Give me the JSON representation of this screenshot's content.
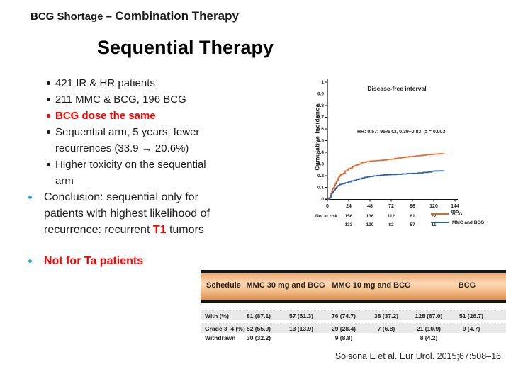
{
  "header": {
    "prefix": "BCG Shortage – ",
    "title": "Combination Therapy"
  },
  "slide_title": "Sequential Therapy",
  "bullets": {
    "b1": "421 IR & HR patients",
    "b2": "211 MMC & BCG, 196 BCG",
    "b3": "BCG dose the same",
    "b4a": "Sequential arm, 5 years, fewer",
    "b4b": "recurrences (33.9 → 20.6%)",
    "b5a": "Higher toxicity on the sequential",
    "b5b": "arm",
    "c1": "Conclusion: sequential only for",
    "c2": "patients with highest likelihood of",
    "c3_pre": "recurrence: recurrent ",
    "c3_hl": "T1",
    "c3_post": " tumors",
    "nota": "Not for Ta patients"
  },
  "chart_data": {
    "type": "line",
    "title": "Disease-free interval",
    "ylabel": "Cumulative Incidence",
    "xlabel": "mo",
    "xlim": [
      0,
      144
    ],
    "ylim": [
      0,
      1
    ],
    "xticks": [
      0,
      24,
      48,
      72,
      96,
      120,
      144
    ],
    "yticks": [
      0,
      0.1,
      0.2,
      0.3,
      0.4,
      0.5,
      0.6,
      0.7,
      0.8,
      0.9,
      1
    ],
    "grid": false,
    "legend_position": "bottom-right",
    "annotation_pre": "HR: 0.57; 95% CI, 0.39–0.83; ",
    "annotation_p": "p",
    "annotation_post": " = 0.003",
    "series": [
      {
        "name": "BCG",
        "color": "#e5662b",
        "points": [
          [
            0,
            0
          ],
          [
            1,
            0.01
          ],
          [
            3,
            0.03
          ],
          [
            4,
            0.05
          ],
          [
            5,
            0.07
          ],
          [
            6,
            0.09
          ],
          [
            7,
            0.1
          ],
          [
            8,
            0.12
          ],
          [
            9,
            0.13
          ],
          [
            10,
            0.15
          ],
          [
            11,
            0.16
          ],
          [
            12,
            0.18
          ],
          [
            13,
            0.19
          ],
          [
            14,
            0.2
          ],
          [
            15,
            0.21
          ],
          [
            17,
            0.215
          ],
          [
            18,
            0.22
          ],
          [
            20,
            0.24
          ],
          [
            22,
            0.25
          ],
          [
            24,
            0.26
          ],
          [
            26,
            0.265
          ],
          [
            28,
            0.275
          ],
          [
            30,
            0.285
          ],
          [
            32,
            0.29
          ],
          [
            34,
            0.295
          ],
          [
            36,
            0.3
          ],
          [
            38,
            0.31
          ],
          [
            40,
            0.315
          ],
          [
            44,
            0.32
          ],
          [
            48,
            0.325
          ],
          [
            52,
            0.327
          ],
          [
            56,
            0.33
          ],
          [
            60,
            0.332
          ],
          [
            64,
            0.335
          ],
          [
            68,
            0.34
          ],
          [
            72,
            0.342
          ],
          [
            76,
            0.348
          ],
          [
            80,
            0.352
          ],
          [
            84,
            0.355
          ],
          [
            88,
            0.36
          ],
          [
            92,
            0.363
          ],
          [
            96,
            0.365
          ],
          [
            100,
            0.37
          ],
          [
            104,
            0.372
          ],
          [
            108,
            0.376
          ],
          [
            112,
            0.38
          ],
          [
            116,
            0.382
          ],
          [
            120,
            0.385
          ],
          [
            126,
            0.387
          ],
          [
            132,
            0.388
          ]
        ]
      },
      {
        "name": "MMC and BCG",
        "color": "#2d5fa5",
        "points": [
          [
            0,
            0
          ],
          [
            2,
            0.01
          ],
          [
            4,
            0.03
          ],
          [
            5,
            0.05
          ],
          [
            6,
            0.06
          ],
          [
            7,
            0.07
          ],
          [
            8,
            0.08
          ],
          [
            9,
            0.09
          ],
          [
            10,
            0.1
          ],
          [
            11,
            0.11
          ],
          [
            12,
            0.115
          ],
          [
            14,
            0.125
          ],
          [
            16,
            0.13
          ],
          [
            18,
            0.133
          ],
          [
            20,
            0.138
          ],
          [
            22,
            0.142
          ],
          [
            24,
            0.148
          ],
          [
            27,
            0.155
          ],
          [
            30,
            0.16
          ],
          [
            33,
            0.168
          ],
          [
            36,
            0.173
          ],
          [
            39,
            0.18
          ],
          [
            42,
            0.186
          ],
          [
            45,
            0.19
          ],
          [
            48,
            0.194
          ],
          [
            52,
            0.198
          ],
          [
            56,
            0.202
          ],
          [
            60,
            0.205
          ],
          [
            64,
            0.207
          ],
          [
            68,
            0.208
          ],
          [
            72,
            0.21
          ],
          [
            78,
            0.212
          ],
          [
            84,
            0.215
          ],
          [
            90,
            0.218
          ],
          [
            96,
            0.22
          ],
          [
            102,
            0.224
          ],
          [
            108,
            0.228
          ],
          [
            114,
            0.232
          ],
          [
            118,
            0.238
          ],
          [
            120,
            0.24
          ],
          [
            126,
            0.241
          ],
          [
            132,
            0.242
          ]
        ]
      }
    ],
    "no_at_risk": {
      "label": "No. at risk",
      "months": [
        24,
        48,
        72,
        96,
        120
      ],
      "rows": [
        {
          "name": "BCG",
          "counts": [
            "156",
            "136",
            "112",
            "81",
            "22"
          ]
        },
        {
          "name": "MMC and BCG",
          "counts": [
            "133",
            "100",
            "82",
            "57",
            "11"
          ]
        }
      ]
    }
  },
  "toxicity_table": {
    "headers": [
      "Schedule",
      "MMC 30 mg and BCG",
      "MMC 10 mg and BCG",
      "BCG"
    ],
    "rows": [
      {
        "label": "With (%)",
        "values": [
          "81 (87.1)",
          "57 (61.3)",
          "76 (74.7)",
          "38 (37.2)",
          "128 (67.0)",
          "51 (26.7)"
        ]
      },
      {
        "label": "Grade 3–4 (%)",
        "values": [
          "52 (55.9)",
          "13 (13.9)",
          "29 (28.4)",
          "7 (6.8)",
          "21 (10.9)",
          "9 (4.7)"
        ]
      },
      {
        "label": "Withdrawn",
        "values": [
          "30 (32.2)",
          "",
          "9 (8.8)",
          "",
          "8 (4.2)",
          ""
        ]
      }
    ]
  },
  "citation": "Solsona E et al. Eur Urol. 2015;67:508–16",
  "colors": {
    "red_text": "#fe0000",
    "cyan_bullet": "#35a3d3",
    "bcg_curve": "#e5662b",
    "mmc_bcg_curve": "#2d5fa5",
    "table_header_orange": "#f5c492",
    "table_row_gray": "#e9e9e9"
  }
}
